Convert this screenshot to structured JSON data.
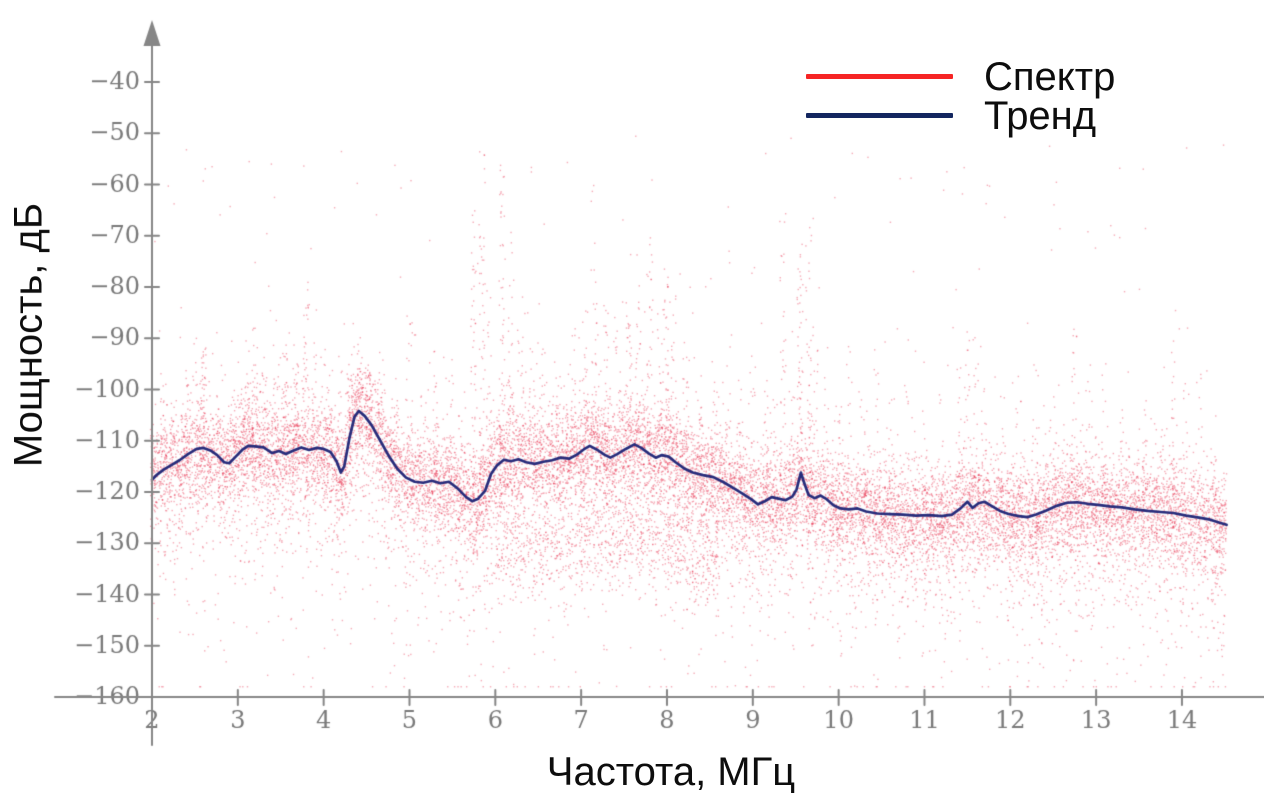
{
  "chart_data": {
    "type": "scatter",
    "title": "",
    "xlabel": "Частота, МГц",
    "ylabel": "Мощность, дБ",
    "xlim": [
      2,
      14.52
    ],
    "ylim": [
      -160,
      -40
    ],
    "x_ticks": [
      2,
      3,
      4,
      5,
      6,
      7,
      8,
      9,
      10,
      11,
      12,
      13,
      14
    ],
    "y_ticks": [
      -40,
      -50,
      -60,
      -70,
      -80,
      -90,
      -100,
      -110,
      -120,
      -130,
      -140,
      -150,
      -160
    ],
    "grid": false,
    "legend_position": "top-right",
    "axis": {
      "color": "#868686",
      "tick_label_color": "#7a7a7a",
      "tick_font_px": 24
    },
    "series": [
      {
        "name": "Спектр",
        "type": "scatter",
        "color": "#e82a49",
        "alpha": 0.4,
        "legend_color": "#f62424",
        "cloud": {
          "seed": 1337,
          "count": 16000,
          "f_range": [
            1.98,
            14.52
          ],
          "sigma": 4.3,
          "tail_down": {
            "p": 0.3,
            "mean": 7.5
          },
          "tail_down2": {
            "p": 0.05,
            "mean": 14
          },
          "tail_up": {
            "p": 0.07,
            "mean": 3.2
          },
          "upper_fuzz": {
            "count": 700,
            "offset": 4,
            "mean": 6
          },
          "top_sparse": {
            "count": 130,
            "db_min": -108,
            "db_max": -50
          },
          "low_blob": {
            "count": 900,
            "f_range": [
              6.0,
              8.6
            ],
            "offset": -17,
            "sigma": 5
          },
          "db_min": -158,
          "db_max": -47
        },
        "spikes": [
          [
            2.12,
            -99,
            22
          ],
          [
            2.25,
            -100,
            18
          ],
          [
            2.42,
            -97,
            22
          ],
          [
            2.6,
            -91,
            40
          ],
          [
            2.78,
            -100,
            16
          ],
          [
            2.95,
            -98,
            20
          ],
          [
            3.1,
            -93,
            28
          ],
          [
            3.2,
            -88,
            30
          ],
          [
            3.32,
            -94,
            24
          ],
          [
            3.45,
            -95,
            22
          ],
          [
            3.55,
            -90,
            28
          ],
          [
            3.68,
            -93,
            22
          ],
          [
            3.8,
            -79,
            38
          ],
          [
            3.9,
            -92,
            20
          ],
          [
            4.05,
            -96,
            18
          ],
          [
            4.18,
            -94,
            20
          ],
          [
            4.3,
            -94,
            26
          ],
          [
            4.42,
            -93,
            30
          ],
          [
            4.52,
            -95,
            24
          ],
          [
            4.65,
            -99,
            16
          ],
          [
            4.85,
            -95,
            18
          ],
          [
            5.0,
            -84,
            28
          ],
          [
            5.15,
            -97,
            14
          ],
          [
            5.3,
            -88,
            18
          ],
          [
            5.48,
            -91,
            16
          ],
          [
            5.62,
            -97,
            14
          ],
          [
            5.75,
            -61,
            50
          ],
          [
            5.85,
            -54,
            55
          ],
          [
            5.93,
            -79,
            28
          ],
          [
            6.08,
            -56,
            60
          ],
          [
            6.18,
            -68,
            38
          ],
          [
            6.3,
            -86,
            22
          ],
          [
            6.42,
            -92,
            18
          ],
          [
            6.55,
            -92,
            18
          ],
          [
            6.72,
            -95,
            14
          ],
          [
            6.9,
            -87,
            22
          ],
          [
            7.05,
            -81,
            24
          ],
          [
            7.15,
            -59,
            40
          ],
          [
            7.3,
            -83,
            22
          ],
          [
            7.42,
            -86,
            18
          ],
          [
            7.55,
            -74,
            42
          ],
          [
            7.66,
            -79,
            30
          ],
          [
            7.8,
            -67,
            36
          ],
          [
            7.92,
            -84,
            22
          ],
          [
            8.0,
            -76,
            48
          ],
          [
            8.08,
            -82,
            30
          ],
          [
            8.22,
            -91,
            20
          ],
          [
            8.38,
            -96,
            14
          ],
          [
            8.55,
            -89,
            20
          ],
          [
            8.72,
            -98,
            12
          ],
          [
            8.85,
            -93,
            18
          ],
          [
            9.0,
            -92,
            18
          ],
          [
            9.15,
            -96,
            14
          ],
          [
            9.35,
            -65,
            36
          ],
          [
            9.45,
            -88,
            18
          ],
          [
            9.55,
            -71,
            55
          ],
          [
            9.65,
            -68,
            45
          ],
          [
            9.73,
            -89,
            22
          ],
          [
            9.85,
            -95,
            16
          ],
          [
            10.0,
            -98,
            13
          ],
          [
            10.12,
            -93,
            16
          ],
          [
            10.28,
            -100,
            12
          ],
          [
            10.45,
            -91,
            18
          ],
          [
            10.62,
            -102,
            10
          ],
          [
            10.8,
            -99,
            13
          ],
          [
            11.0,
            -103,
            10
          ],
          [
            11.2,
            -101,
            11
          ],
          [
            11.4,
            -95,
            14
          ],
          [
            11.5,
            -87,
            26
          ],
          [
            11.6,
            -89,
            22
          ],
          [
            11.7,
            -94,
            16
          ],
          [
            11.9,
            -101,
            11
          ],
          [
            12.1,
            -99,
            12
          ],
          [
            12.3,
            -96,
            14
          ],
          [
            12.5,
            -102,
            10
          ],
          [
            12.75,
            -88,
            22
          ],
          [
            12.92,
            -97,
            12
          ],
          [
            13.1,
            -93,
            16
          ],
          [
            13.3,
            -100,
            11
          ],
          [
            13.55,
            -99,
            11
          ],
          [
            13.75,
            -103,
            9
          ],
          [
            13.9,
            -86,
            24
          ],
          [
            14.05,
            -95,
            12
          ],
          [
            14.2,
            -96,
            12
          ],
          [
            14.4,
            -103,
            9
          ]
        ]
      },
      {
        "name": "Тренд",
        "type": "line",
        "color": "#272c7b",
        "legend_color": "#13265f",
        "width": 2.7,
        "points": [
          [
            2.0,
            -117.6
          ],
          [
            2.06,
            -116.6
          ],
          [
            2.14,
            -115.6
          ],
          [
            2.22,
            -114.8
          ],
          [
            2.32,
            -113.8
          ],
          [
            2.42,
            -112.6
          ],
          [
            2.52,
            -111.6
          ],
          [
            2.6,
            -111.4
          ],
          [
            2.68,
            -111.9
          ],
          [
            2.76,
            -112.8
          ],
          [
            2.84,
            -114.2
          ],
          [
            2.9,
            -114.4
          ],
          [
            2.97,
            -113.2
          ],
          [
            3.05,
            -111.8
          ],
          [
            3.12,
            -111.0
          ],
          [
            3.2,
            -111.1
          ],
          [
            3.3,
            -111.3
          ],
          [
            3.4,
            -112.4
          ],
          [
            3.48,
            -112.0
          ],
          [
            3.56,
            -112.6
          ],
          [
            3.65,
            -111.9
          ],
          [
            3.74,
            -111.3
          ],
          [
            3.83,
            -111.8
          ],
          [
            3.92,
            -111.4
          ],
          [
            4.0,
            -111.6
          ],
          [
            4.08,
            -112.2
          ],
          [
            4.15,
            -114.0
          ],
          [
            4.2,
            -116.2
          ],
          [
            4.24,
            -115.0
          ],
          [
            4.3,
            -109.5
          ],
          [
            4.36,
            -105.3
          ],
          [
            4.41,
            -104.2
          ],
          [
            4.48,
            -105.2
          ],
          [
            4.56,
            -107.0
          ],
          [
            4.66,
            -110.0
          ],
          [
            4.76,
            -113.0
          ],
          [
            4.86,
            -115.5
          ],
          [
            4.96,
            -117.2
          ],
          [
            5.06,
            -118.0
          ],
          [
            5.16,
            -118.2
          ],
          [
            5.26,
            -117.8
          ],
          [
            5.36,
            -118.3
          ],
          [
            5.46,
            -118.0
          ],
          [
            5.56,
            -119.3
          ],
          [
            5.66,
            -121.0
          ],
          [
            5.73,
            -121.8
          ],
          [
            5.8,
            -121.3
          ],
          [
            5.88,
            -119.8
          ],
          [
            5.95,
            -116.5
          ],
          [
            6.02,
            -114.8
          ],
          [
            6.1,
            -113.7
          ],
          [
            6.18,
            -114.0
          ],
          [
            6.27,
            -113.6
          ],
          [
            6.36,
            -114.2
          ],
          [
            6.46,
            -114.5
          ],
          [
            6.56,
            -114.1
          ],
          [
            6.66,
            -113.8
          ],
          [
            6.76,
            -113.3
          ],
          [
            6.86,
            -113.5
          ],
          [
            6.95,
            -112.7
          ],
          [
            7.03,
            -111.7
          ],
          [
            7.1,
            -111.0
          ],
          [
            7.18,
            -111.7
          ],
          [
            7.27,
            -112.7
          ],
          [
            7.34,
            -113.3
          ],
          [
            7.42,
            -112.6
          ],
          [
            7.52,
            -111.6
          ],
          [
            7.62,
            -110.7
          ],
          [
            7.7,
            -111.4
          ],
          [
            7.79,
            -112.5
          ],
          [
            7.87,
            -113.3
          ],
          [
            7.94,
            -112.8
          ],
          [
            8.02,
            -113.1
          ],
          [
            8.1,
            -114.2
          ],
          [
            8.2,
            -115.4
          ],
          [
            8.3,
            -116.2
          ],
          [
            8.42,
            -116.7
          ],
          [
            8.54,
            -117.1
          ],
          [
            8.66,
            -118.1
          ],
          [
            8.78,
            -119.3
          ],
          [
            8.88,
            -120.3
          ],
          [
            8.98,
            -121.4
          ],
          [
            9.06,
            -122.4
          ],
          [
            9.14,
            -121.8
          ],
          [
            9.22,
            -121.0
          ],
          [
            9.3,
            -121.3
          ],
          [
            9.38,
            -121.6
          ],
          [
            9.46,
            -120.9
          ],
          [
            9.51,
            -119.5
          ],
          [
            9.56,
            -116.2
          ],
          [
            9.6,
            -118.3
          ],
          [
            9.65,
            -120.6
          ],
          [
            9.72,
            -121.2
          ],
          [
            9.79,
            -120.7
          ],
          [
            9.86,
            -121.4
          ],
          [
            9.94,
            -122.6
          ],
          [
            10.02,
            -123.2
          ],
          [
            10.12,
            -123.4
          ],
          [
            10.22,
            -123.2
          ],
          [
            10.32,
            -123.8
          ],
          [
            10.45,
            -124.2
          ],
          [
            10.6,
            -124.3
          ],
          [
            10.75,
            -124.4
          ],
          [
            10.9,
            -124.6
          ],
          [
            11.05,
            -124.5
          ],
          [
            11.2,
            -124.7
          ],
          [
            11.32,
            -124.4
          ],
          [
            11.42,
            -123.2
          ],
          [
            11.5,
            -121.9
          ],
          [
            11.56,
            -123.1
          ],
          [
            11.63,
            -122.2
          ],
          [
            11.7,
            -121.9
          ],
          [
            11.78,
            -122.7
          ],
          [
            11.88,
            -123.7
          ],
          [
            11.98,
            -124.3
          ],
          [
            12.1,
            -124.7
          ],
          [
            12.2,
            -124.9
          ],
          [
            12.3,
            -124.4
          ],
          [
            12.42,
            -123.6
          ],
          [
            12.54,
            -122.7
          ],
          [
            12.66,
            -122.1
          ],
          [
            12.78,
            -122.0
          ],
          [
            12.9,
            -122.3
          ],
          [
            13.02,
            -122.5
          ],
          [
            13.16,
            -122.8
          ],
          [
            13.3,
            -123.0
          ],
          [
            13.45,
            -123.4
          ],
          [
            13.6,
            -123.7
          ],
          [
            13.75,
            -123.9
          ],
          [
            13.9,
            -124.1
          ],
          [
            14.05,
            -124.6
          ],
          [
            14.2,
            -125.0
          ],
          [
            14.33,
            -125.4
          ],
          [
            14.44,
            -126.0
          ],
          [
            14.52,
            -126.4
          ]
        ]
      }
    ]
  }
}
